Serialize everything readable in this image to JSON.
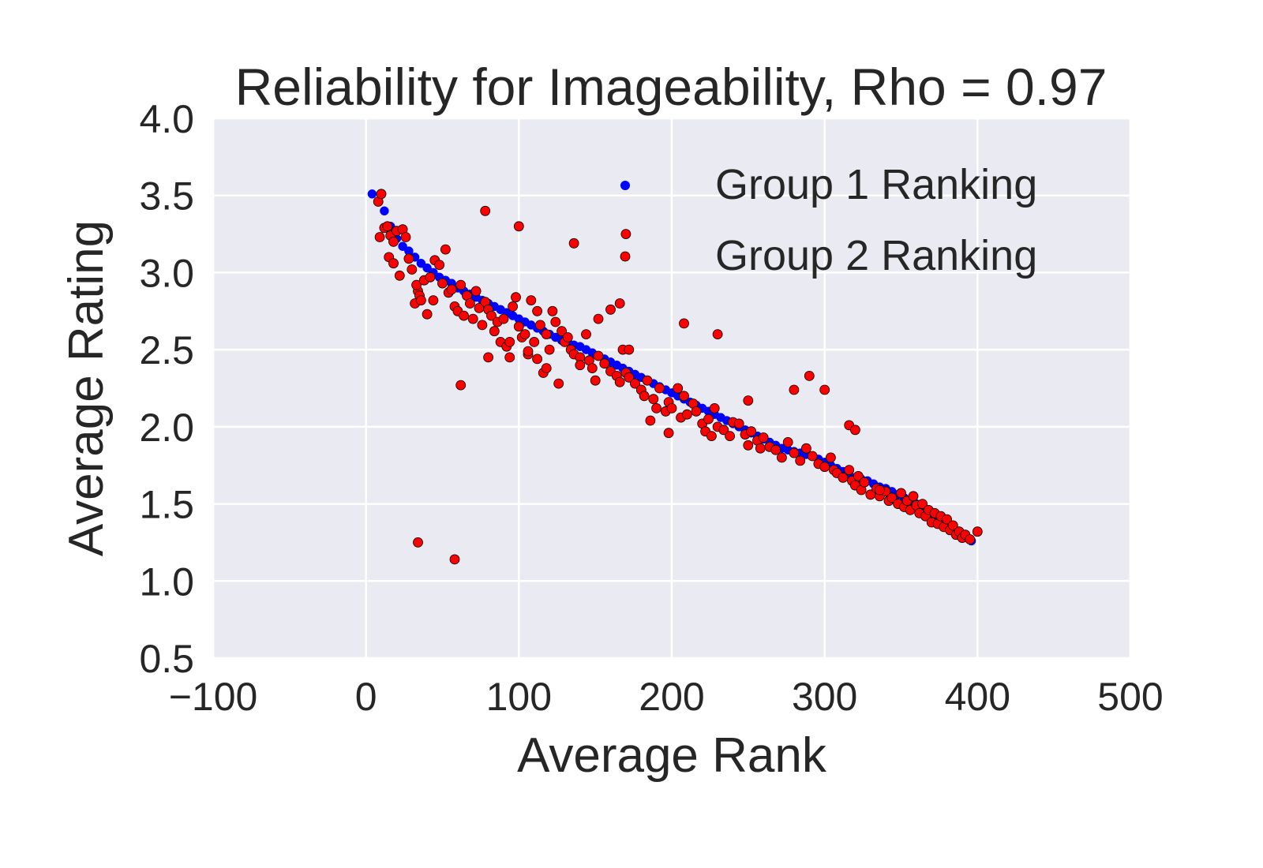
{
  "chart_data": {
    "type": "scatter",
    "title": "Reliability for Imageability, Rho = 0.97",
    "xlabel": "Average Rank",
    "ylabel": "Average Rating",
    "xlim": [
      -100,
      500
    ],
    "ylim": [
      0.5,
      4.0
    ],
    "xticks": [
      -100,
      0,
      100,
      200,
      300,
      400,
      500
    ],
    "xtick_labels": [
      "−100",
      "0",
      "100",
      "200",
      "300",
      "400",
      "500"
    ],
    "yticks": [
      0.5,
      1.0,
      1.5,
      2.0,
      2.5,
      3.0,
      3.5,
      4.0
    ],
    "ytick_labels": [
      "0.5",
      "1.0",
      "1.5",
      "2.0",
      "2.5",
      "3.0",
      "3.5",
      "4.0"
    ],
    "grid": true,
    "legend_position": "top-right",
    "colors": {
      "background": "#EAEAF2",
      "grid": "#FFFFFF",
      "text": "#262626",
      "group1": "#0000FF",
      "group2": "#FF0000",
      "edge": "#000000"
    },
    "series": [
      {
        "name": "Group 1 Ranking",
        "color": "#0000FF",
        "x": [
          4,
          8,
          12,
          16,
          20,
          24,
          28,
          32,
          36,
          40,
          44,
          48,
          52,
          56,
          60,
          64,
          68,
          72,
          76,
          80,
          84,
          88,
          92,
          96,
          100,
          104,
          108,
          112,
          116,
          120,
          124,
          128,
          132,
          136,
          140,
          144,
          148,
          152,
          156,
          160,
          164,
          168,
          172,
          176,
          180,
          184,
          188,
          192,
          196,
          200,
          204,
          208,
          212,
          216,
          220,
          224,
          228,
          232,
          236,
          240,
          244,
          248,
          252,
          256,
          260,
          264,
          268,
          272,
          276,
          280,
          284,
          288,
          292,
          296,
          300,
          304,
          308,
          312,
          316,
          320,
          324,
          328,
          332,
          336,
          340,
          344,
          348,
          352,
          356,
          360,
          364,
          368,
          372,
          376,
          380,
          384,
          388,
          392,
          396
        ],
        "y": [
          3.51,
          3.46,
          3.4,
          3.3,
          3.22,
          3.17,
          3.14,
          3.1,
          3.06,
          3.03,
          3.0,
          2.97,
          2.95,
          2.93,
          2.9,
          2.88,
          2.86,
          2.84,
          2.82,
          2.8,
          2.78,
          2.76,
          2.74,
          2.72,
          2.7,
          2.68,
          2.66,
          2.64,
          2.62,
          2.6,
          2.58,
          2.56,
          2.55,
          2.53,
          2.52,
          2.5,
          2.48,
          2.46,
          2.44,
          2.42,
          2.4,
          2.38,
          2.36,
          2.34,
          2.32,
          2.3,
          2.28,
          2.26,
          2.24,
          2.22,
          2.2,
          2.18,
          2.16,
          2.14,
          2.12,
          2.1,
          2.08,
          2.06,
          2.04,
          2.02,
          2.0,
          1.98,
          1.96,
          1.94,
          1.92,
          1.9,
          1.88,
          1.86,
          1.85,
          1.84,
          1.83,
          1.82,
          1.81,
          1.79,
          1.77,
          1.75,
          1.73,
          1.71,
          1.69,
          1.67,
          1.66,
          1.65,
          1.63,
          1.61,
          1.6,
          1.58,
          1.56,
          1.54,
          1.52,
          1.5,
          1.47,
          1.44,
          1.42,
          1.4,
          1.38,
          1.35,
          1.32,
          1.29,
          1.26
        ]
      },
      {
        "name": "Group 2 Ranking",
        "color": "#FF0000",
        "x": [
          8,
          10,
          9,
          12,
          14,
          16,
          18,
          20,
          24,
          26,
          28,
          15,
          18,
          22,
          30,
          32,
          34,
          33,
          35,
          36,
          38,
          40,
          42,
          44,
          45,
          48,
          50,
          52,
          54,
          56,
          58,
          60,
          62,
          64,
          66,
          68,
          70,
          72,
          74,
          76,
          78,
          80,
          82,
          84,
          86,
          88,
          90,
          92,
          94,
          96,
          98,
          100,
          102,
          104,
          106,
          108,
          110,
          112,
          114,
          116,
          118,
          120,
          122,
          124,
          126,
          128,
          130,
          132,
          134,
          136,
          140,
          144,
          146,
          148,
          150,
          152,
          156,
          160,
          164,
          166,
          168,
          170,
          172,
          176,
          180,
          184,
          188,
          190,
          192,
          196,
          198,
          200,
          204,
          206,
          208,
          210,
          214,
          216,
          220,
          224,
          228,
          230,
          234,
          238,
          240,
          244,
          248,
          250,
          252,
          256,
          258,
          260,
          264,
          268,
          272,
          276,
          280,
          284,
          288,
          292,
          296,
          300,
          304,
          306,
          308,
          312,
          316,
          318,
          320,
          322,
          324,
          326,
          330,
          334,
          336,
          340,
          342,
          344,
          348,
          350,
          352,
          354,
          356,
          358,
          360,
          362,
          364,
          366,
          368,
          370,
          372,
          374,
          376,
          378,
          380,
          382,
          384,
          386,
          388,
          390,
          392,
          395,
          400,
          34,
          58,
          78,
          100,
          170,
          180,
          152,
          208,
          250,
          280,
          290,
          300,
          316,
          320,
          336,
          222,
          230,
          62,
          136,
          166,
          172,
          186,
          198,
          226,
          140,
          182,
          94,
          160,
          80,
          112,
          118,
          106
        ],
        "y": [
          3.46,
          3.51,
          3.23,
          3.29,
          3.3,
          3.24,
          3.2,
          3.27,
          3.28,
          3.23,
          3.09,
          3.1,
          3.06,
          2.98,
          3.02,
          2.8,
          2.88,
          2.92,
          2.85,
          2.82,
          2.95,
          2.73,
          2.97,
          2.82,
          3.08,
          3.05,
          2.93,
          3.15,
          2.87,
          2.89,
          2.78,
          2.75,
          2.92,
          2.72,
          2.85,
          2.8,
          2.7,
          2.88,
          2.77,
          2.66,
          2.81,
          2.76,
          2.72,
          2.62,
          2.68,
          2.55,
          2.7,
          2.52,
          2.45,
          2.78,
          2.84,
          2.65,
          2.58,
          2.6,
          2.47,
          2.82,
          2.55,
          2.44,
          2.66,
          2.35,
          2.6,
          2.5,
          2.75,
          2.68,
          2.28,
          2.62,
          2.55,
          2.58,
          2.5,
          2.47,
          2.45,
          2.6,
          2.43,
          2.38,
          2.3,
          2.46,
          2.41,
          2.36,
          2.33,
          2.29,
          2.5,
          2.35,
          2.32,
          2.28,
          2.24,
          2.3,
          2.18,
          2.12,
          2.25,
          2.1,
          2.16,
          2.12,
          2.25,
          2.06,
          2.2,
          2.08,
          2.15,
          2.1,
          2.02,
          2.05,
          2.12,
          2.0,
          1.98,
          1.94,
          2.03,
          2.02,
          1.95,
          1.88,
          1.97,
          1.91,
          1.86,
          1.93,
          1.87,
          1.85,
          1.8,
          1.9,
          1.83,
          1.78,
          1.86,
          1.81,
          1.76,
          1.74,
          1.8,
          1.72,
          1.7,
          1.67,
          1.72,
          1.65,
          1.62,
          1.68,
          1.59,
          1.64,
          1.56,
          1.6,
          1.55,
          1.58,
          1.52,
          1.54,
          1.5,
          1.57,
          1.48,
          1.52,
          1.46,
          1.55,
          1.49,
          1.44,
          1.5,
          1.42,
          1.46,
          1.38,
          1.44,
          1.37,
          1.42,
          1.35,
          1.4,
          1.33,
          1.36,
          1.3,
          1.32,
          1.28,
          1.3,
          1.27,
          1.32,
          1.25,
          1.14,
          3.4,
          3.3,
          3.25,
          2.24,
          2.7,
          2.67,
          2.17,
          2.24,
          2.33,
          2.24,
          2.01,
          1.98,
          1.59,
          1.97,
          2.6,
          2.27,
          3.19,
          2.8,
          2.5,
          2.04,
          1.96,
          1.94,
          2.4,
          2.2,
          2.55,
          2.76,
          2.45,
          2.75,
          2.38,
          2.49
        ]
      }
    ]
  }
}
